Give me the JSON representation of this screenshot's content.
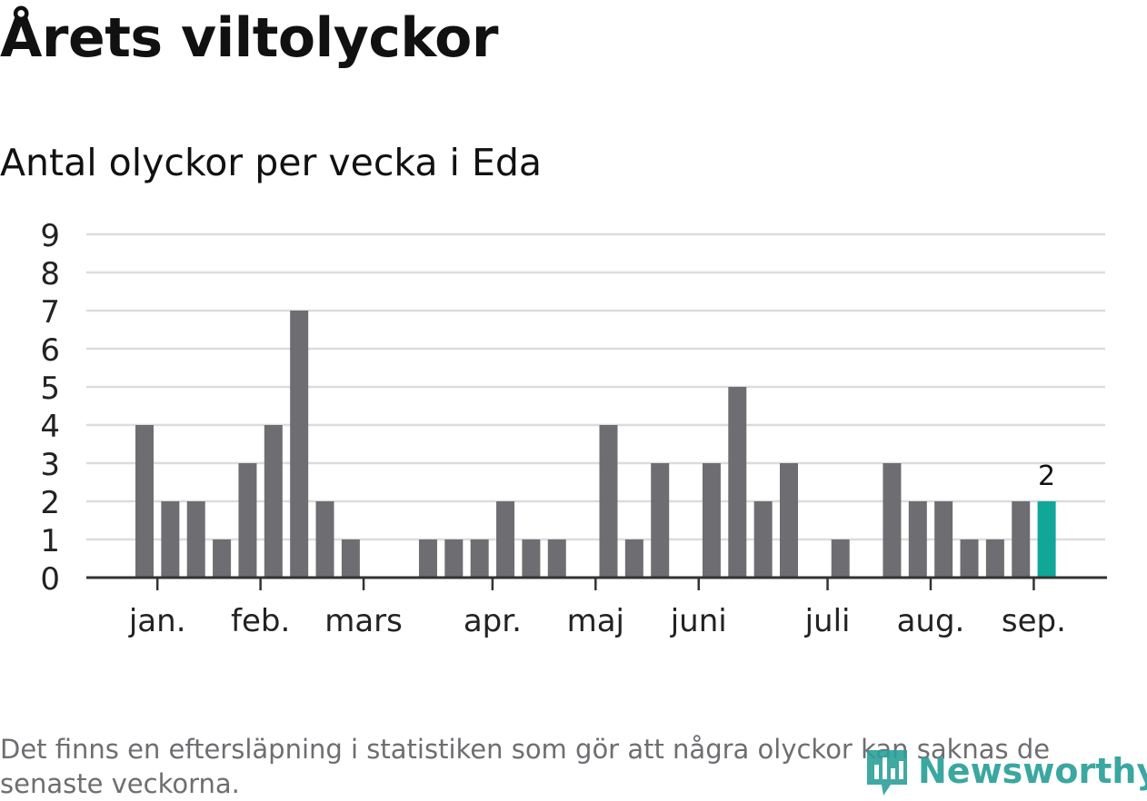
{
  "title": "Årets viltolyckor",
  "subtitle": "Antal olyckor per vecka i Eda",
  "footnote": "Det finns en eftersläpning i statistiken som gör att några olyckor kan saknas de senaste veckorna.",
  "logo_text": "Newsworthy",
  "colors": {
    "bar": "#6e6d72",
    "highlight": "#10a69a",
    "grid": "#dcdcdc",
    "axis": "#333333",
    "logo": "#2aa098"
  },
  "chart_data": {
    "type": "bar",
    "ylim": [
      0,
      9
    ],
    "yticks": [
      "0",
      "1",
      "2",
      "3",
      "4",
      "5",
      "6",
      "7",
      "8",
      "9"
    ],
    "values": [
      4,
      2,
      2,
      1,
      3,
      4,
      7,
      2,
      1,
      0,
      0,
      1,
      1,
      1,
      2,
      1,
      1,
      0,
      4,
      1,
      3,
      0,
      3,
      5,
      2,
      3,
      0,
      1,
      0,
      3,
      2,
      2,
      1,
      1,
      2,
      2
    ],
    "highlight_index": 35,
    "data_labels": [
      {
        "index": 35,
        "text": "2"
      }
    ],
    "months": [
      {
        "label": "jan.",
        "index": 0.5
      },
      {
        "label": "feb.",
        "index": 4.5
      },
      {
        "label": "mars",
        "index": 8.5
      },
      {
        "label": "apr.",
        "index": 13.5
      },
      {
        "label": "maj",
        "index": 17.5
      },
      {
        "label": "juni",
        "index": 21.5
      },
      {
        "label": "juli",
        "index": 26.5
      },
      {
        "label": "aug.",
        "index": 30.5
      },
      {
        "label": "sep.",
        "index": 34.5
      }
    ],
    "grid": true
  }
}
